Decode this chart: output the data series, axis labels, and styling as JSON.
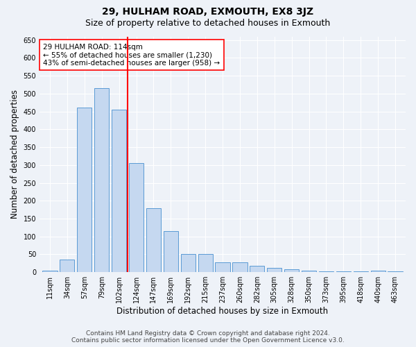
{
  "title": "29, HULHAM ROAD, EXMOUTH, EX8 3JZ",
  "subtitle": "Size of property relative to detached houses in Exmouth",
  "xlabel": "Distribution of detached houses by size in Exmouth",
  "ylabel": "Number of detached properties",
  "categories": [
    "11sqm",
    "34sqm",
    "57sqm",
    "79sqm",
    "102sqm",
    "124sqm",
    "147sqm",
    "169sqm",
    "192sqm",
    "215sqm",
    "237sqm",
    "260sqm",
    "282sqm",
    "305sqm",
    "328sqm",
    "350sqm",
    "373sqm",
    "395sqm",
    "418sqm",
    "440sqm",
    "463sqm"
  ],
  "values": [
    5,
    35,
    460,
    515,
    455,
    305,
    180,
    115,
    50,
    50,
    27,
    27,
    18,
    12,
    8,
    5,
    3,
    2,
    3,
    5,
    2
  ],
  "bar_color": "#c5d8f0",
  "bar_edge_color": "#5a9ad5",
  "vline_color": "red",
  "annotation_line1": "29 HULHAM ROAD: 114sqm",
  "annotation_line2": "← 55% of detached houses are smaller (1,230)",
  "annotation_line3": "43% of semi-detached houses are larger (958) →",
  "annotation_box_color": "white",
  "annotation_box_edge_color": "red",
  "ylim": [
    0,
    660
  ],
  "yticks": [
    0,
    50,
    100,
    150,
    200,
    250,
    300,
    350,
    400,
    450,
    500,
    550,
    600,
    650
  ],
  "footer_line1": "Contains HM Land Registry data © Crown copyright and database right 2024.",
  "footer_line2": "Contains public sector information licensed under the Open Government Licence v3.0.",
  "bg_color": "#eef2f8",
  "title_fontsize": 10,
  "subtitle_fontsize": 9,
  "axis_label_fontsize": 8.5,
  "tick_fontsize": 7,
  "annotation_fontsize": 7.5,
  "footer_fontsize": 6.5
}
